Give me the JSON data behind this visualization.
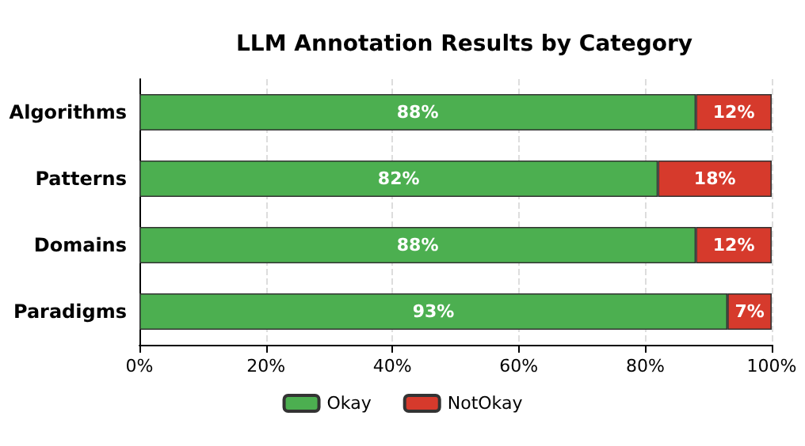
{
  "chart_data": {
    "type": "bar",
    "orientation": "horizontal",
    "stacked": true,
    "title": "LLM Annotation Results by Category",
    "categories": [
      "Algorithms",
      "Patterns",
      "Domains",
      "Paradigms"
    ],
    "series": [
      {
        "name": "Okay",
        "color": "#4caf50",
        "values": [
          88,
          82,
          88,
          93
        ],
        "value_labels": [
          "88%",
          "82%",
          "88%",
          "93%"
        ]
      },
      {
        "name": "NotOkay",
        "color": "#d63a2c",
        "values": [
          12,
          18,
          12,
          7
        ],
        "value_labels": [
          "12%",
          "18%",
          "12%",
          "7%"
        ]
      }
    ],
    "xlim": [
      0,
      100
    ],
    "xticks": [
      {
        "value": 0,
        "label": "0%"
      },
      {
        "value": 20,
        "label": "20%"
      },
      {
        "value": 40,
        "label": "40%"
      },
      {
        "value": 60,
        "label": "60%"
      },
      {
        "value": 80,
        "label": "80%"
      },
      {
        "value": 100,
        "label": "100%"
      }
    ],
    "grid": "x",
    "legend": "bottom"
  }
}
